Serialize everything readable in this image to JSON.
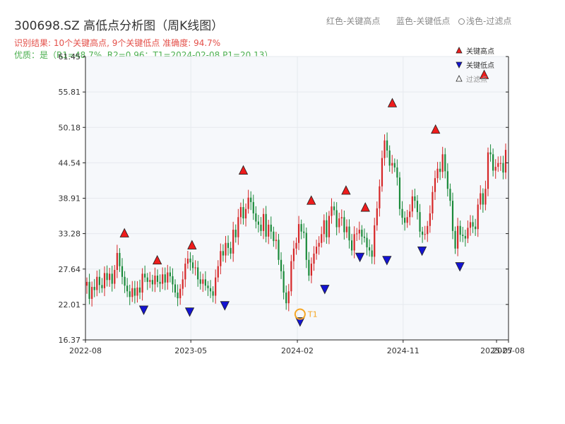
{
  "header": {
    "title": "300698.SZ 高低点分析图（周K线图）",
    "legend_top": {
      "high": "红色-关键高点",
      "low": "蓝色-关键低点",
      "filtered": "浅色-过滤点"
    },
    "result_line": "识别结果: 10个关键高点, 9个关键低点   准确度: 94.7%",
    "quality_line": "优质：是（R1=48.7%, R2=0.96；T1=2024-02-08 P1=20.13）"
  },
  "colors": {
    "up": "#d62728",
    "down": "#1a8a3a",
    "high_marker": "#ee1c1c",
    "low_marker": "#1414d2",
    "t1": "#f5a623",
    "grid": "#e6e9ee",
    "plot_bg": "#f6f8fb"
  },
  "chart_data": {
    "type": "candlestick",
    "title": "300698.SZ 高低点分析图（周K线图）",
    "x_start": "2022-08",
    "x_end": "2025-08",
    "x_ticks": [
      "2022-08",
      "2023-05",
      "2024-02",
      "2024-11",
      "2025-07",
      "2025-08"
    ],
    "y_ticks": [
      16.37,
      22.01,
      27.64,
      33.28,
      38.91,
      44.54,
      50.18,
      55.81,
      61.45
    ],
    "ylim": [
      16.37,
      61.45
    ],
    "legend": {
      "high": "关键高点",
      "low": "关键低点",
      "filtered": "过滤点"
    },
    "key_highs": [
      {
        "date": "2022-11-10",
        "value": 32.5
      },
      {
        "date": "2023-02-03",
        "value": 28.2
      },
      {
        "date": "2023-05-04",
        "value": 30.6
      },
      {
        "date": "2023-09-14",
        "value": 42.5
      },
      {
        "date": "2024-03-08",
        "value": 37.7
      },
      {
        "date": "2024-06-06",
        "value": 39.3
      },
      {
        "date": "2024-07-26",
        "value": 36.6
      },
      {
        "date": "2024-10-04",
        "value": 53.2
      },
      {
        "date": "2025-01-24",
        "value": 49.0
      },
      {
        "date": "2025-05-30",
        "value": 57.7
      }
    ],
    "key_lows": [
      {
        "date": "2022-12-30",
        "value": 22.0
      },
      {
        "date": "2023-04-28",
        "value": 21.7
      },
      {
        "date": "2023-07-28",
        "value": 22.7
      },
      {
        "date": "2024-02-08",
        "value": 20.13
      },
      {
        "date": "2024-04-12",
        "value": 25.3
      },
      {
        "date": "2024-07-12",
        "value": 30.4
      },
      {
        "date": "2024-09-20",
        "value": 29.9
      },
      {
        "date": "2024-12-20",
        "value": 31.4
      },
      {
        "date": "2025-03-28",
        "value": 28.9
      }
    ],
    "t1": {
      "date": "2024-02-08",
      "value": 20.13,
      "label": "T1"
    },
    "close": [
      25.6,
      22.9,
      24.8,
      24.3,
      26.4,
      25.1,
      24.6,
      27.0,
      25.9,
      26.9,
      25.3,
      27.5,
      30.2,
      28.1,
      26.4,
      25.0,
      24.1,
      23.2,
      24.6,
      23.4,
      24.7,
      23.9,
      26.9,
      26.3,
      25.6,
      25.9,
      25.2,
      26.6,
      25.6,
      25.3,
      26.8,
      25.5,
      27.1,
      26.5,
      25.2,
      23.9,
      23.0,
      24.5,
      26.0,
      28.5,
      29.3,
      28.7,
      27.8,
      27.9,
      26.0,
      25.3,
      26.0,
      25.0,
      24.6,
      24.1,
      23.4,
      26.3,
      28.1,
      30.5,
      29.8,
      31.8,
      31.0,
      30.1,
      33.9,
      32.7,
      35.9,
      37.5,
      35.7,
      37.2,
      39.0,
      38.3,
      36.5,
      35.2,
      34.7,
      33.7,
      36.4,
      32.8,
      34.7,
      33.6,
      32.1,
      32.3,
      29.1,
      27.3,
      23.9,
      22.2,
      24.1,
      28.9,
      30.9,
      31.8,
      34.8,
      33.6,
      33.4,
      29.1,
      26.6,
      28.5,
      30.1,
      31.2,
      31.8,
      33.2,
      35.4,
      32.7,
      36.1,
      37.6,
      37.0,
      34.3,
      35.7,
      35.9,
      33.5,
      34.4,
      32.2,
      30.6,
      33.2,
      33.3,
      33.9,
      32.8,
      32.6,
      31.1,
      30.6,
      29.6,
      34.6,
      37.3,
      40.8,
      45.3,
      48.1,
      46.5,
      44.1,
      44.5,
      43.8,
      42.2,
      37.2,
      35.8,
      35.0,
      35.9,
      36.8,
      39.2,
      38.5,
      36.7,
      33.6,
      33.1,
      33.2,
      34.5,
      36.5,
      39.9,
      42.1,
      43.6,
      43.1,
      45.9,
      43.2,
      40.4,
      38.5,
      33.7,
      30.9,
      34.5,
      33.1,
      32.9,
      32.5,
      34.2,
      35.1,
      34.4,
      34.0,
      37.9,
      39.7,
      37.9,
      40.4,
      46.2,
      45.9,
      43.3,
      43.9,
      44.5,
      44.5,
      43.0,
      46.6
    ]
  }
}
